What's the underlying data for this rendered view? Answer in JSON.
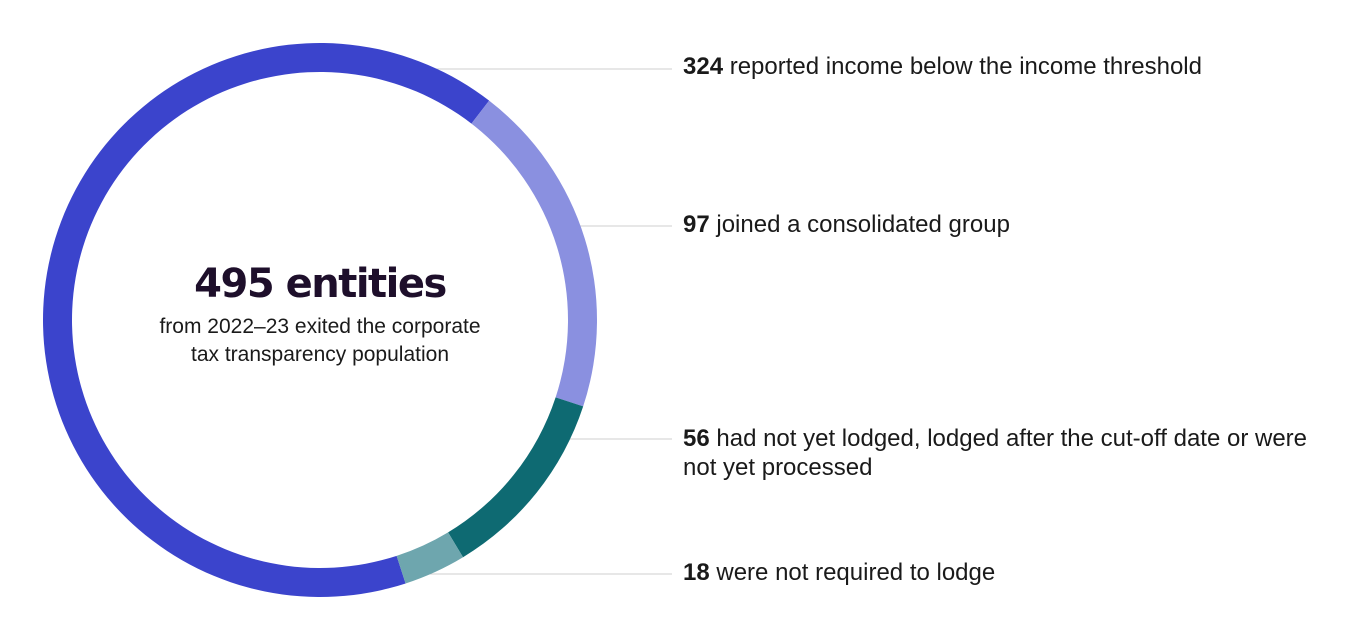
{
  "chart_data": {
    "type": "pie",
    "style": "donut",
    "title": "495 entities",
    "subtitle": "from 2022–23 exited the corporate tax transparency population",
    "total": 495,
    "series": [
      {
        "value": 324,
        "value_label": "324",
        "label": "reported income below the income threshold",
        "color": "#3b44cc"
      },
      {
        "value": 97,
        "value_label": "97",
        "label": "joined a consolidated group",
        "color": "#8a90e0"
      },
      {
        "value": 56,
        "value_label": "56",
        "label": "had not yet lodged, lodged after the cut-off date or were not yet processed",
        "color": "#0e6a72"
      },
      {
        "value": 18,
        "value_label": "18",
        "label": "were not required to lodge",
        "color": "#6ea6ae"
      }
    ]
  }
}
